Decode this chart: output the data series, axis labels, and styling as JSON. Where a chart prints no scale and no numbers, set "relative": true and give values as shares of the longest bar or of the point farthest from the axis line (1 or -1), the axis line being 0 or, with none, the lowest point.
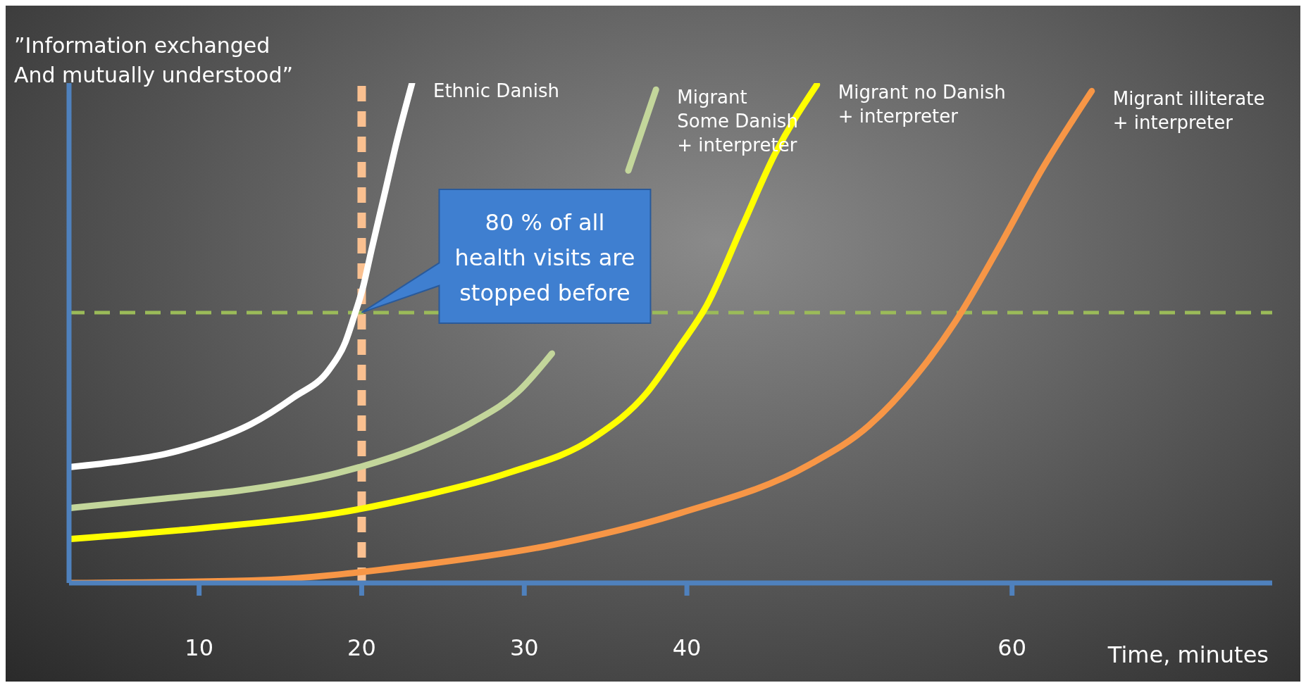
{
  "chart_data": {
    "type": "line",
    "relative": true,
    "ylabel": "”Information exchanged\nAnd mutually understood”",
    "xlabel": "Time, minutes",
    "xlim": [
      2,
      76
    ],
    "xticks": [
      10,
      20,
      30,
      40,
      60
    ],
    "series": [
      {
        "name": "Ethnic Danish",
        "color": "#ffffff",
        "x": [
          2.1,
          5.3,
          7.9,
          10.6,
          13.2,
          15.8,
          18.0,
          19.0,
          19.5,
          20.1,
          20.6,
          21.4,
          22.2,
          23.1
        ],
        "values": [
          0.232,
          0.244,
          0.258,
          0.283,
          0.318,
          0.371,
          0.427,
          0.482,
          0.53,
          0.594,
          0.666,
          0.777,
          0.889,
          1.0
        ]
      },
      {
        "name": "Migrant\nSome Danish\n+ interpreter",
        "color": "#c3d69b",
        "x": [
          2.1,
          7.9,
          13.2,
          18.5,
          23.8,
          26.9,
          29.6,
          31.7,
          33.3,
          34.8,
          36.4,
          38.1
        ],
        "values": [
          0.15,
          0.169,
          0.188,
          0.22,
          0.275,
          0.323,
          0.382,
          0.459,
          null,
          null,
          0.825,
          0.987
        ]
      },
      {
        "name": "Migrant no Danish\n+ interpreter",
        "color": "#ffff00",
        "x": [
          2.1,
          10.6,
          18.5,
          23.8,
          29.0,
          34.3,
          37.5,
          39.6,
          41.2,
          43.4,
          45.4,
          48.0
        ],
        "values": [
          0.088,
          0.111,
          0.14,
          0.175,
          0.22,
          0.291,
          0.379,
          0.475,
          0.554,
          0.713,
          0.857,
          0.997
        ]
      },
      {
        "name": "Migrant illiterate\n+ interpreter",
        "color": "#f79646",
        "x": [
          2.1,
          13.2,
          23.8,
          31.7,
          39.6,
          47.5,
          51.2,
          54.4,
          56.5,
          59.1,
          61.8,
          64.9
        ],
        "values": [
          0.0,
          0.005,
          0.037,
          0.076,
          0.14,
          0.236,
          0.315,
          0.427,
          0.522,
          0.666,
          0.825,
          0.984
        ]
      }
    ],
    "ref_lines": [
      {
        "axis": "x",
        "value": 20,
        "color": "#fac090",
        "line_style": "dashed"
      },
      {
        "axis": "y",
        "value": 0.541,
        "color": "#9bbb59",
        "line_style": "dashed"
      }
    ],
    "annotations": [
      "80 % of all health visits are stopped before"
    ],
    "line_style": "solid",
    "marker": "none"
  }
}
